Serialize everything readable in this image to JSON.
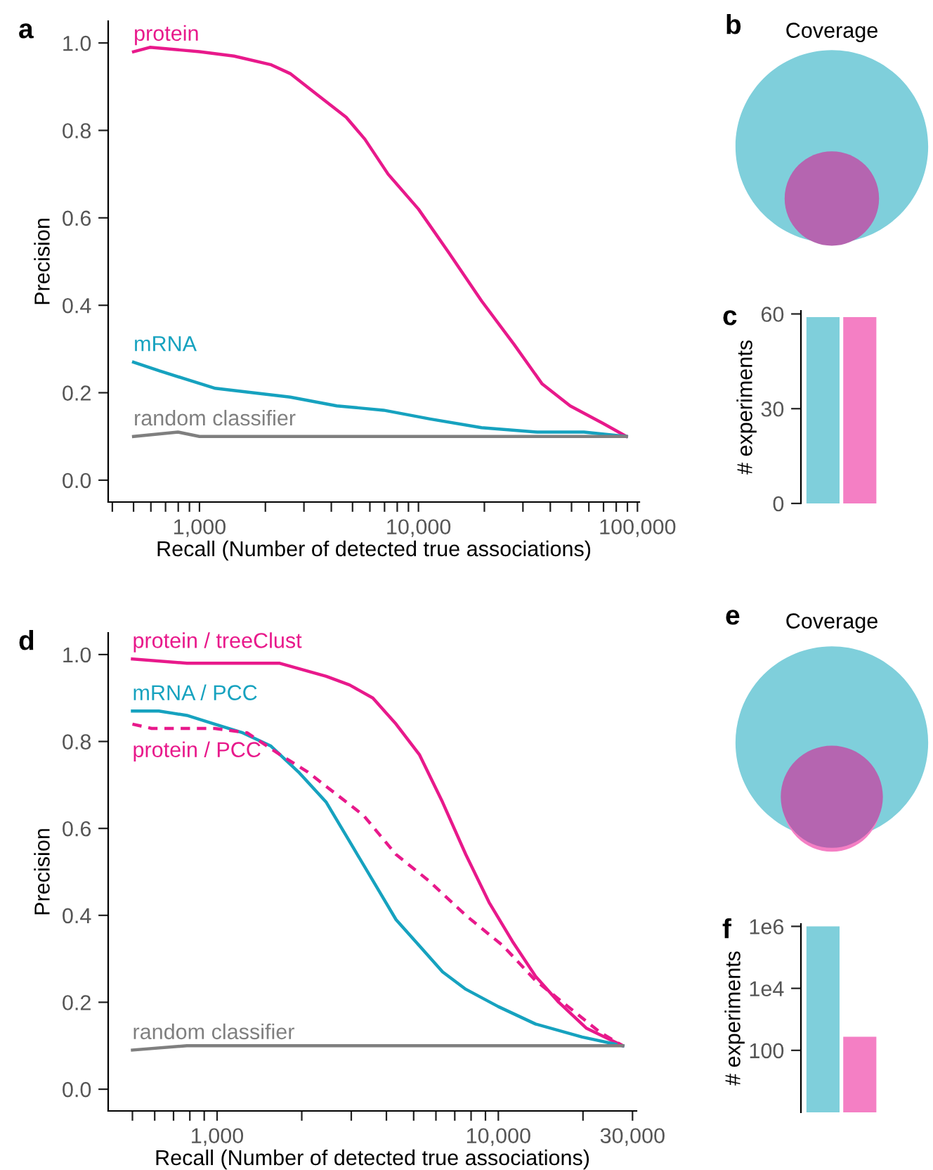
{
  "chart_data": [
    {
      "type": "line",
      "annotations": [
        "a"
      ],
      "xlabel": "Recall (Number of detected true associations)",
      "ylabel": "Precision",
      "log": "x",
      "legend": false,
      "grid": false,
      "xlim": [
        383,
        102000
      ],
      "ylim": [
        -0.05,
        1.05
      ],
      "yticks": [
        {
          "value": 0,
          "label": "0.0"
        },
        0.2,
        0.4,
        0.6,
        0.8,
        {
          "value": 1,
          "label": "1.0"
        }
      ],
      "xticks": [
        {
          "value": 400,
          "label": null
        },
        {
          "value": 500,
          "label": null
        },
        {
          "value": 600,
          "label": null
        },
        {
          "value": 700,
          "label": null
        },
        {
          "value": 800,
          "label": null
        },
        {
          "value": 900,
          "label": null
        },
        {
          "value": 1000,
          "label": "1,000"
        },
        {
          "value": 2000,
          "label": null
        },
        {
          "value": 3000,
          "label": null
        },
        {
          "value": 4000,
          "label": null
        },
        {
          "value": 5000,
          "label": null
        },
        {
          "value": 6000,
          "label": null
        },
        {
          "value": 7000,
          "label": null
        },
        {
          "value": 8000,
          "label": null
        },
        {
          "value": 9000,
          "label": null
        },
        {
          "value": 10000,
          "label": "10,000"
        },
        {
          "value": 20000,
          "label": null
        },
        {
          "value": 30000,
          "label": null
        },
        {
          "value": 40000,
          "label": null
        },
        {
          "value": 50000,
          "label": null
        },
        {
          "value": 60000,
          "label": null
        },
        {
          "value": 70000,
          "label": null
        },
        {
          "value": 80000,
          "label": null
        },
        {
          "value": 90000,
          "label": null
        },
        {
          "value": 100000,
          "label": "100,000"
        }
      ],
      "series": [
        {
          "name": "protein",
          "color": "#e8198b",
          "x": [
            500,
            594,
            1000,
            1438,
            2128,
            2595,
            3484,
            4677,
            5690,
            7266,
            10000,
            13770,
            19420,
            27370,
            36730,
            49300,
            69500,
            89000
          ],
          "values": [
            0.98,
            0.99,
            0.98,
            0.97,
            0.95,
            0.93,
            0.88,
            0.83,
            0.78,
            0.7,
            0.62,
            0.52,
            0.41,
            0.31,
            0.22,
            0.17,
            0.13,
            0.1
          ]
        },
        {
          "name": "mRNA",
          "color": "#16a2bf",
          "x": [
            500,
            656,
            880,
            1182,
            1750,
            2595,
            4237,
            6929,
            11300,
            19420,
            34800,
            57000,
            89000
          ],
          "values": [
            0.27,
            0.25,
            0.23,
            0.21,
            0.2,
            0.19,
            0.17,
            0.16,
            0.14,
            0.12,
            0.11,
            0.11,
            0.1
          ]
        },
        {
          "name": "random classifier",
          "color": "#7f7f7f",
          "x": [
            500,
            798,
            1000,
            4000,
            89000
          ],
          "values": [
            0.1,
            0.11,
            0.1,
            0.1,
            0.1
          ]
        }
      ]
    },
    {
      "type": "other",
      "annotations": [
        "b"
      ],
      "title": "Coverage"
    },
    {
      "type": "bar",
      "annotations": [
        "c"
      ],
      "ylabel": "# experiments",
      "categories": [
        null,
        null
      ],
      "values": [
        59,
        59
      ],
      "colors": [
        "#7fcfdb",
        "#f47fc4"
      ],
      "ylim": [
        0,
        61
      ],
      "yticks": [
        0,
        30,
        60
      ]
    },
    {
      "type": "line",
      "annotations": [
        "d"
      ],
      "xlabel": "Recall (Number of detected true associations)",
      "ylabel": "Precision",
      "log": "x",
      "legend": false,
      "grid": false,
      "xlim": [
        410,
        31000
      ],
      "ylim": [
        -0.05,
        1.05
      ],
      "yticks": [
        {
          "value": 0,
          "label": "0.0"
        },
        0.2,
        0.4,
        0.6,
        0.8,
        {
          "value": 1,
          "label": "1.0"
        }
      ],
      "xticks": [
        {
          "value": 500,
          "label": null
        },
        {
          "value": 600,
          "label": null
        },
        {
          "value": 700,
          "label": null
        },
        {
          "value": 800,
          "label": null
        },
        {
          "value": 900,
          "label": null
        },
        {
          "value": 1000,
          "label": "1,000"
        },
        {
          "value": 2000,
          "label": null
        },
        {
          "value": 3000,
          "label": null
        },
        {
          "value": 4000,
          "label": null
        },
        {
          "value": 5000,
          "label": null
        },
        {
          "value": 6000,
          "label": null
        },
        {
          "value": 7000,
          "label": null
        },
        {
          "value": 8000,
          "label": null
        },
        {
          "value": 9000,
          "label": null
        },
        {
          "value": 10000,
          "label": "10,000"
        },
        {
          "value": 20000,
          "label": null
        },
        {
          "value": 30000,
          "label": "30,000"
        }
      ],
      "series": [
        {
          "name": "protein / treeClust",
          "color": "#e8198b",
          "line_style": "solid",
          "x": [
            500,
            781,
            1142,
            1671,
            2445,
            2958,
            3580,
            4329,
            5237,
            6337,
            7661,
            9268,
            11230,
            13560,
            16400,
            20600,
            27700
          ],
          "values": [
            0.99,
            0.98,
            0.98,
            0.98,
            0.95,
            0.93,
            0.9,
            0.84,
            0.77,
            0.66,
            0.54,
            0.43,
            0.34,
            0.26,
            0.2,
            0.14,
            0.1
          ]
        },
        {
          "name": "mRNA / PCC",
          "color": "#16a2bf",
          "line_style": "solid",
          "x": [
            500,
            621,
            781,
            981,
            1233,
            1549,
            1946,
            2445,
            2958,
            3580,
            4329,
            5237,
            6337,
            7661,
            10000,
            13560,
            19860,
            27700
          ],
          "values": [
            0.87,
            0.87,
            0.86,
            0.84,
            0.82,
            0.79,
            0.73,
            0.66,
            0.57,
            0.48,
            0.39,
            0.33,
            0.27,
            0.23,
            0.19,
            0.15,
            0.12,
            0.1
          ]
        },
        {
          "name": "protein / PCC",
          "color": "#e8198b",
          "line_style": "dashed",
          "x": [
            500,
            585,
            781,
            981,
            1278,
            1671,
            2099,
            2637,
            3316,
            4329,
            5649,
            7661,
            10390,
            13560,
            17700,
            23100,
            27700
          ],
          "values": [
            0.84,
            0.83,
            0.83,
            0.83,
            0.82,
            0.77,
            0.73,
            0.68,
            0.63,
            0.54,
            0.48,
            0.4,
            0.33,
            0.25,
            0.19,
            0.13,
            0.1
          ]
        },
        {
          "name": "random classifier",
          "color": "#7f7f7f",
          "line_style": "solid",
          "x": [
            500,
            781,
            1671,
            7661,
            27700
          ],
          "values": [
            0.09,
            0.1,
            0.1,
            0.1,
            0.1
          ]
        }
      ]
    },
    {
      "type": "other",
      "annotations": [
        "e"
      ],
      "title": "Coverage"
    },
    {
      "type": "bar",
      "annotations": [
        "f"
      ],
      "ylabel": "# experiments",
      "log": "y",
      "categories": [
        null,
        null
      ],
      "values": [
        1000000,
        275
      ],
      "colors": [
        "#7fcfdb",
        "#f47fc4"
      ],
      "ylim": [
        1,
        1200000
      ],
      "yticks": [
        {
          "value": 100,
          "label": "100"
        },
        {
          "value": 10000,
          "label": "1e4"
        },
        {
          "value": 1000000,
          "label": "1e6"
        }
      ]
    }
  ]
}
